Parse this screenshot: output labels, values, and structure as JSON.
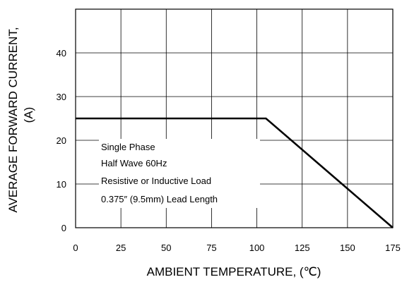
{
  "chart_data": {
    "type": "line",
    "title": "",
    "xlabel": "AMBIENT TEMPERATURE, (℃)",
    "ylabel_line1": "AVERAGE FORWARD CURRENT,",
    "ylabel_line2": "(A)",
    "xlim": [
      0,
      175
    ],
    "ylim": [
      0,
      50
    ],
    "x_ticks": [
      0,
      25,
      50,
      75,
      100,
      125,
      150,
      175
    ],
    "y_ticks_labeled": [
      0,
      10,
      20,
      30,
      40
    ],
    "y_gridlines": [
      0,
      10,
      20,
      30,
      40,
      50
    ],
    "grid": true,
    "series": [
      {
        "x": [
          0,
          105,
          175
        ],
        "y": [
          25,
          25,
          0
        ]
      }
    ],
    "annotations": [
      "Single Phase",
      "Half Wave 60Hz",
      "Resistive or Inductive Load",
      "0.375″ (9.5mm) Lead Length"
    ]
  }
}
